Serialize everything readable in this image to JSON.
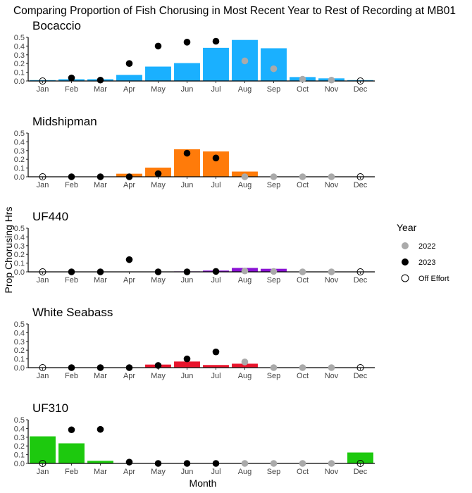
{
  "chart_data": {
    "title": "Comparing Proportion of Fish Chorusing in Most Recent Year to Rest of Recording at MB01",
    "xlabel": "Month",
    "ylabel": "Prop Chorusing Hrs",
    "categories": [
      "Jan",
      "Feb",
      "Mar",
      "Apr",
      "May",
      "Jun",
      "Jul",
      "Aug",
      "Sep",
      "Oct",
      "Nov",
      "Dec"
    ],
    "ylim": [
      0,
      0.5
    ],
    "yticks": [
      "0.0",
      "0.1",
      "0.2",
      "0.3",
      "0.4",
      "0.5"
    ],
    "legend": {
      "title": "Year",
      "position": "right",
      "entries": [
        {
          "label": "2022",
          "color": "#aaaaaa",
          "style": "filled"
        },
        {
          "label": "2023",
          "color": "#000000",
          "style": "filled"
        },
        {
          "label": "Off Effort",
          "color": "#000000",
          "style": "open"
        }
      ]
    },
    "panels": [
      {
        "type": "bar+scatter",
        "title": "Bocaccio",
        "color": "#1ab0ff",
        "bars": [
          0.01,
          0.02,
          0.02,
          0.07,
          0.165,
          0.205,
          0.38,
          0.47,
          0.375,
          0.045,
          0.03,
          0.01
        ],
        "points": [
          [
            "Off Effort",
            0
          ],
          [
            "2023",
            0.035
          ],
          [
            "2023",
            0.01
          ],
          [
            "2023",
            0.2
          ],
          [
            "2023",
            0.4
          ],
          [
            "2023",
            0.445
          ],
          [
            "2023",
            0.455
          ],
          [
            "2022",
            0.23
          ],
          [
            "2022",
            0.14
          ],
          [
            "2022",
            0.02
          ],
          [
            "2022",
            0.01
          ],
          [
            "Off Effort",
            0
          ]
        ]
      },
      {
        "type": "bar+scatter",
        "title": "Midshipman",
        "color": "#ff7b0a",
        "bars": [
          0,
          0,
          0,
          0.035,
          0.105,
          0.315,
          0.29,
          0.06,
          0,
          0,
          0,
          0
        ],
        "points": [
          [
            "Off Effort",
            0
          ],
          [
            "2023",
            0
          ],
          [
            "2023",
            0
          ],
          [
            "2023",
            0
          ],
          [
            "2023",
            0.035
          ],
          [
            "2023",
            0.27
          ],
          [
            "2023",
            0.215
          ],
          [
            "2022",
            0
          ],
          [
            "2022",
            0
          ],
          [
            "2022",
            0
          ],
          [
            "2022",
            0
          ],
          [
            "Off Effort",
            0
          ]
        ]
      },
      {
        "type": "bar+scatter",
        "title": "UF440",
        "color": "#8a12d4",
        "bars": [
          0,
          0,
          0,
          0,
          0,
          0.005,
          0.015,
          0.045,
          0.035,
          0,
          0,
          0
        ],
        "points": [
          [
            "Off Effort",
            0
          ],
          [
            "2023",
            0
          ],
          [
            "2023",
            0
          ],
          [
            "2023",
            0.14
          ],
          [
            "2023",
            0
          ],
          [
            "2023",
            0
          ],
          [
            "2023",
            0.005
          ],
          [
            "2022",
            0.01
          ],
          [
            "2022",
            0.005
          ],
          [
            "2022",
            0
          ],
          [
            "2022",
            0
          ],
          [
            "Off Effort",
            0
          ]
        ]
      },
      {
        "type": "bar+scatter",
        "title": "White Seabass",
        "color": "#e8142c",
        "bars": [
          0,
          0,
          0,
          0,
          0.035,
          0.07,
          0.03,
          0.045,
          0,
          0,
          0,
          0
        ],
        "points": [
          [
            "Off Effort",
            0
          ],
          [
            "2023",
            0
          ],
          [
            "2023",
            0
          ],
          [
            "2023",
            0
          ],
          [
            "2023",
            0.025
          ],
          [
            "2023",
            0.1
          ],
          [
            "2023",
            0.18
          ],
          [
            "2022",
            0.065
          ],
          [
            "2022",
            0
          ],
          [
            "2022",
            0
          ],
          [
            "2022",
            0
          ],
          [
            "Off Effort",
            0
          ]
        ]
      },
      {
        "type": "bar+scatter",
        "title": "UF310",
        "color": "#1dc90e",
        "bars": [
          0.31,
          0.23,
          0.03,
          0,
          0,
          0,
          0,
          0,
          0,
          0,
          0,
          0.125
        ],
        "points": [
          [
            "Off Effort",
            0
          ],
          [
            "2023",
            0.385
          ],
          [
            "2023",
            0.39
          ],
          [
            "2023",
            0.015
          ],
          [
            "2023",
            0
          ],
          [
            "2023",
            0
          ],
          [
            "2023",
            0
          ],
          [
            "2022",
            0
          ],
          [
            "2022",
            0
          ],
          [
            "2022",
            0
          ],
          [
            "2022",
            0
          ],
          [
            "Off Effort",
            0
          ]
        ]
      }
    ]
  }
}
